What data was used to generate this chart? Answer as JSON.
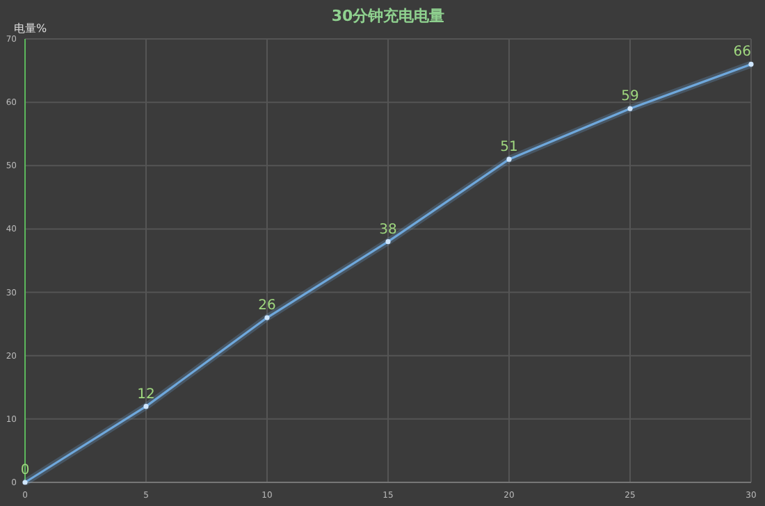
{
  "chart_data": {
    "type": "line",
    "title": "30分钟充电电量",
    "ylabel": "电量%",
    "x": [
      0,
      5,
      10,
      15,
      20,
      25,
      30
    ],
    "series": [
      {
        "color": "#6fa8dc",
        "values": [
          0,
          12,
          26,
          38,
          51,
          59,
          66
        ]
      }
    ],
    "xlim": [
      0,
      30
    ],
    "xticks": [
      0,
      5,
      10,
      15,
      20,
      25,
      30
    ],
    "ylim": [
      0,
      70
    ],
    "yticks": [
      0,
      10,
      20,
      30,
      40,
      50,
      60,
      70
    ],
    "grid": true,
    "marker": "circle",
    "data_labels": true
  }
}
